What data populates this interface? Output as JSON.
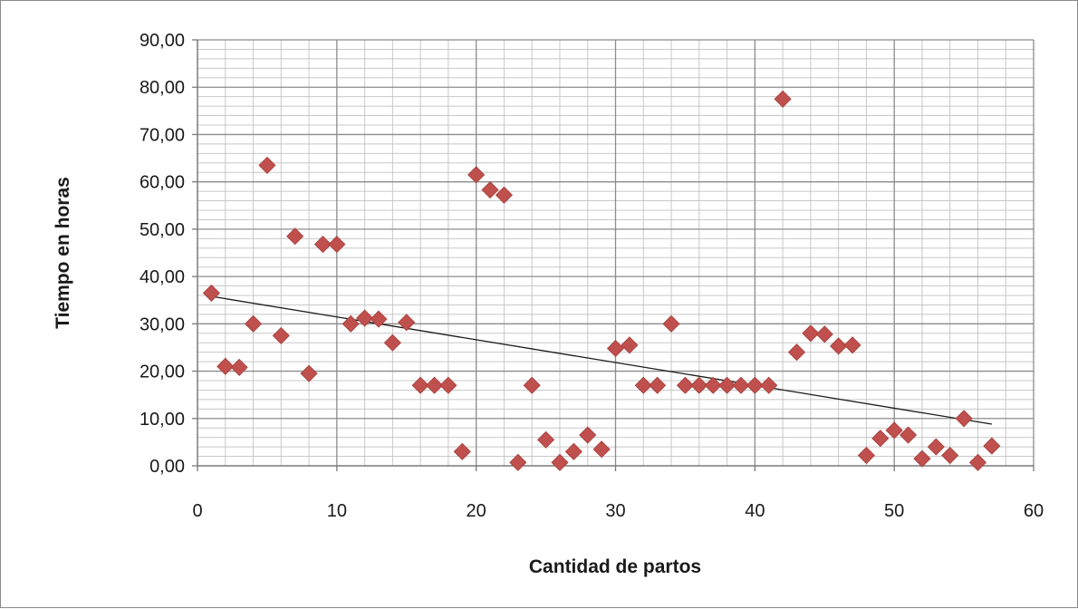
{
  "chart_data": {
    "type": "scatter",
    "title": "",
    "xlabel": "Cantidad de partos",
    "ylabel": "Tiempo en horas",
    "xlim": [
      0,
      60
    ],
    "ylim": [
      0,
      90
    ],
    "x_ticks": [
      "0",
      "10",
      "20",
      "30",
      "40",
      "50",
      "60"
    ],
    "y_ticks": [
      "0,00",
      "10,00",
      "20,00",
      "30,00",
      "40,00",
      "50,00",
      "60,00",
      "70,00",
      "80,00",
      "90,00"
    ],
    "grid": true,
    "legend": "none",
    "marker": "diamond",
    "marker_color": "#c0504d",
    "trendline_color": "#1a1a1a",
    "series": [
      {
        "points": [
          [
            1,
            36.5
          ],
          [
            2,
            21.0
          ],
          [
            3,
            20.8
          ],
          [
            4,
            30.0
          ],
          [
            5,
            63.5
          ],
          [
            6,
            27.5
          ],
          [
            7,
            48.5
          ],
          [
            8,
            19.5
          ],
          [
            9,
            46.8
          ],
          [
            10,
            46.8
          ],
          [
            11,
            30.0
          ],
          [
            12,
            31.2
          ],
          [
            13,
            31.0
          ],
          [
            14,
            26.0
          ],
          [
            15,
            30.3
          ],
          [
            16,
            17.0
          ],
          [
            17,
            17.0
          ],
          [
            18,
            17.0
          ],
          [
            19,
            3.0
          ],
          [
            20,
            61.5
          ],
          [
            21,
            58.3
          ],
          [
            22,
            57.2
          ],
          [
            23,
            0.7
          ],
          [
            24,
            17.0
          ],
          [
            25,
            5.5
          ],
          [
            26,
            0.7
          ],
          [
            27,
            3.0
          ],
          [
            28,
            6.5
          ],
          [
            29,
            3.5
          ],
          [
            30,
            24.8
          ],
          [
            31,
            25.5
          ],
          [
            32,
            17.0
          ],
          [
            33,
            17.0
          ],
          [
            34,
            30.0
          ],
          [
            35,
            17.0
          ],
          [
            36,
            17.0
          ],
          [
            37,
            17.0
          ],
          [
            38,
            17.0
          ],
          [
            39,
            17.0
          ],
          [
            40,
            17.0
          ],
          [
            41,
            17.0
          ],
          [
            42,
            77.5
          ],
          [
            43,
            24.0
          ],
          [
            44,
            28.0
          ],
          [
            45,
            27.8
          ],
          [
            46,
            25.3
          ],
          [
            47,
            25.5
          ],
          [
            48,
            2.2
          ],
          [
            49,
            5.8
          ],
          [
            50,
            7.5
          ],
          [
            51,
            6.5
          ],
          [
            52,
            1.5
          ],
          [
            53,
            4.0
          ],
          [
            54,
            2.2
          ],
          [
            55,
            10.0
          ],
          [
            56,
            0.7
          ],
          [
            57,
            4.2
          ]
        ]
      }
    ],
    "trendline": {
      "type": "linear",
      "from": [
        1,
        35.8
      ],
      "to": [
        57,
        8.8
      ]
    }
  }
}
